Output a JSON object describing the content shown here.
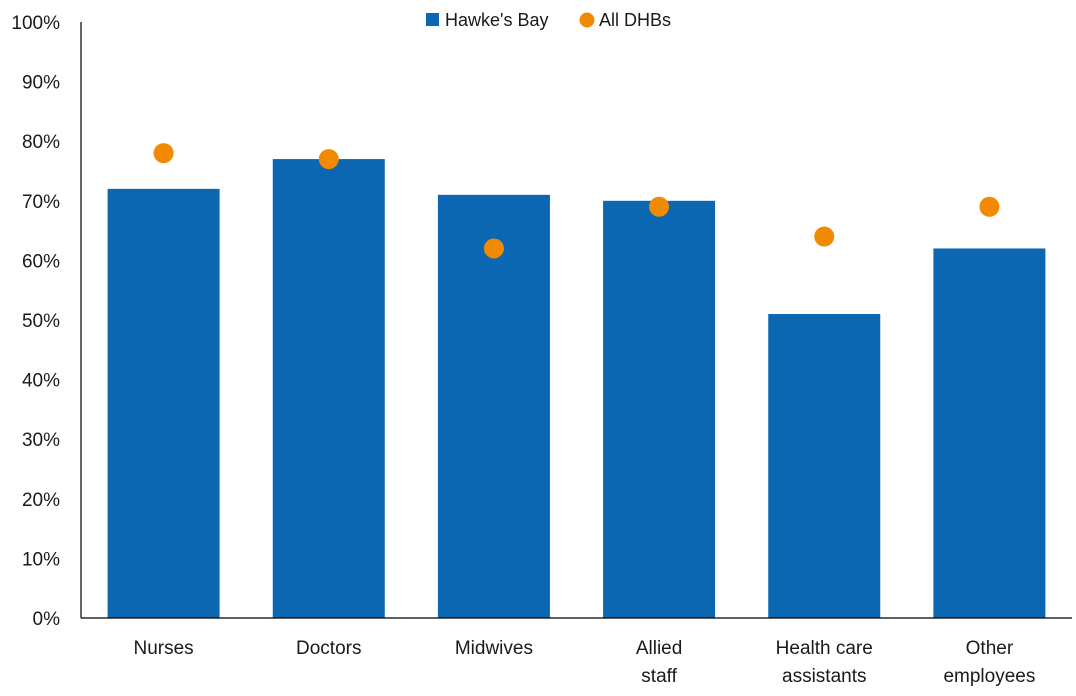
{
  "chart_data": {
    "type": "bar",
    "title": "",
    "xlabel": "",
    "ylabel": "",
    "ylim": [
      0,
      100
    ],
    "y_ticks": [
      "0%",
      "10%",
      "20%",
      "30%",
      "40%",
      "50%",
      "60%",
      "70%",
      "80%",
      "90%",
      "100%"
    ],
    "y_tick_values": [
      0,
      10,
      20,
      30,
      40,
      50,
      60,
      70,
      80,
      90,
      100
    ],
    "categories": [
      [
        "Nurses"
      ],
      [
        "Doctors"
      ],
      [
        "Midwives"
      ],
      [
        "Allied",
        "staff"
      ],
      [
        "Health care",
        "assistants"
      ],
      [
        "Other",
        "employees"
      ]
    ],
    "series": [
      {
        "name": "Hawke's Bay",
        "type": "bar",
        "color": "#0b67b2",
        "marker": "square",
        "values": [
          72,
          77,
          71,
          70,
          51,
          62
        ]
      },
      {
        "name": "All DHBs",
        "type": "dot",
        "color": "#f18a00",
        "marker": "circle",
        "values": [
          78,
          77,
          62,
          69,
          64,
          69
        ]
      }
    ],
    "grid": false,
    "legend_position": "top-center",
    "unit": "%"
  }
}
